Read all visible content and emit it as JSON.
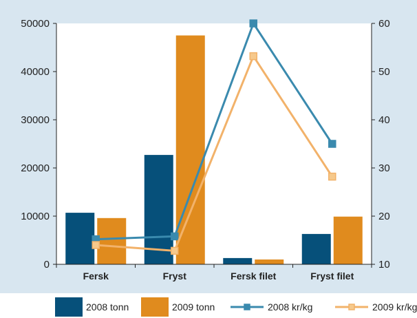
{
  "chart_data": {
    "type": "bar",
    "categories": [
      "Fersk",
      "Fryst",
      "Fersk filet",
      "Fryst filet"
    ],
    "bar_series": [
      {
        "name": "2008 tonn",
        "color": "#06507a",
        "values": [
          10700,
          22700,
          1300,
          6300
        ]
      },
      {
        "name": "2009 tonn",
        "color": "#e08b1e",
        "values": [
          9600,
          47500,
          1000,
          9900
        ]
      }
    ],
    "line_series": [
      {
        "name": "2008 kr/kg",
        "color": "#3a8aae",
        "marker_fill": "#3a8aae",
        "values": [
          15.2,
          15.8,
          60,
          35
        ]
      },
      {
        "name": "2009 kr/kg",
        "color": "#f2b26a",
        "marker_fill": "#f6c98c",
        "values": [
          14,
          12.8,
          53.2,
          28.2
        ]
      }
    ],
    "y_left": {
      "min": 0,
      "max": 50000,
      "ticks": [
        0,
        10000,
        20000,
        30000,
        40000,
        50000
      ]
    },
    "y_right": {
      "min": 10,
      "max": 60,
      "ticks": [
        10,
        20,
        30,
        40,
        50,
        60
      ]
    },
    "title": "",
    "xlabel": "",
    "ylabel": "",
    "grid": false,
    "legend_position": "bottom"
  }
}
